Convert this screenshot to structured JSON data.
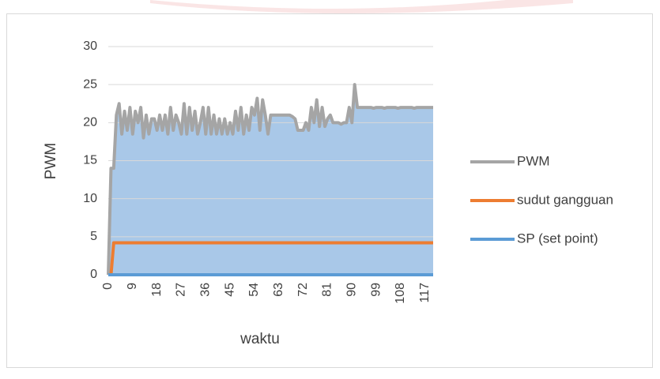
{
  "chart_data": {
    "type": "line",
    "x_label": "waktu",
    "y_label": "PWM",
    "categories": [
      "0",
      null,
      null,
      null,
      null,
      null,
      null,
      null,
      null,
      "9",
      null,
      null,
      null,
      null,
      null,
      null,
      null,
      null,
      "18",
      null,
      null,
      null,
      null,
      null,
      null,
      null,
      null,
      "27",
      null,
      null,
      null,
      null,
      null,
      null,
      null,
      null,
      "36",
      null,
      null,
      null,
      null,
      null,
      null,
      null,
      null,
      "45",
      null,
      null,
      null,
      null,
      null,
      null,
      null,
      null,
      "54",
      null,
      null,
      null,
      null,
      null,
      null,
      null,
      null,
      "63",
      null,
      null,
      null,
      null,
      null,
      null,
      null,
      null,
      "72",
      null,
      null,
      null,
      null,
      null,
      null,
      null,
      null,
      "81",
      null,
      null,
      null,
      null,
      null,
      null,
      null,
      null,
      "90",
      null,
      null,
      null,
      null,
      null,
      null,
      null,
      null,
      "99",
      null,
      null,
      null,
      null,
      null,
      null,
      null,
      null,
      "108",
      null,
      null,
      null,
      null,
      null,
      null,
      null,
      null,
      "117",
      null,
      null,
      null
    ],
    "series": [
      {
        "name": "PWM",
        "color": "#a5a5a5",
        "area_color": "#a9c8e8",
        "values": [
          0,
          14,
          14,
          21,
          22.5,
          18.5,
          21.5,
          19,
          22,
          18.5,
          21.5,
          20,
          22,
          18,
          21,
          18.5,
          20.5,
          20.5,
          19,
          21,
          19,
          21,
          18.5,
          22,
          19,
          21,
          20,
          18.5,
          22.5,
          18.5,
          22,
          19,
          21.5,
          18.5,
          20,
          22,
          18.5,
          22,
          18.5,
          21,
          18.5,
          20.5,
          18.5,
          20.5,
          18.5,
          20,
          18.5,
          21.5,
          19,
          22,
          18.5,
          21,
          19,
          22,
          21,
          23.2,
          19,
          23,
          21,
          18.5,
          21,
          21,
          21,
          21,
          21,
          21,
          21,
          21,
          20.8,
          20.5,
          19,
          19,
          19,
          20,
          19,
          22,
          20,
          23,
          19.5,
          22,
          19.5,
          20.5,
          21,
          20,
          20,
          20,
          19.8,
          20,
          20,
          22,
          20,
          25,
          22,
          22,
          22,
          22,
          22,
          22,
          21.9,
          22,
          22,
          22,
          21.9,
          22,
          22,
          22,
          22,
          21.9,
          22,
          22,
          22,
          22,
          22,
          21.9,
          22,
          22,
          22,
          22,
          22,
          22,
          22
        ]
      },
      {
        "name": "sudut gangguan",
        "color": "#ed7d31",
        "values": [
          0,
          0,
          4.2,
          4.2,
          4.2,
          4.2,
          4.2,
          4.2,
          4.2,
          4.2,
          4.2,
          4.2,
          4.2,
          4.2,
          4.2,
          4.2,
          4.2,
          4.2,
          4.2,
          4.2,
          4.2,
          4.2,
          4.2,
          4.2,
          4.2,
          4.2,
          4.2,
          4.2,
          4.2,
          4.2,
          4.2,
          4.2,
          4.2,
          4.2,
          4.2,
          4.2,
          4.2,
          4.2,
          4.2,
          4.2,
          4.2,
          4.2,
          4.2,
          4.2,
          4.2,
          4.2,
          4.2,
          4.2,
          4.2,
          4.2,
          4.2,
          4.2,
          4.2,
          4.2,
          4.2,
          4.2,
          4.2,
          4.2,
          4.2,
          4.2,
          4.2,
          4.2,
          4.2,
          4.2,
          4.2,
          4.2,
          4.2,
          4.2,
          4.2,
          4.2,
          4.2,
          4.2,
          4.2,
          4.2,
          4.2,
          4.2,
          4.2,
          4.2,
          4.2,
          4.2,
          4.2,
          4.2,
          4.2,
          4.2,
          4.2,
          4.2,
          4.2,
          4.2,
          4.2,
          4.2,
          4.2,
          4.2,
          4.2,
          4.2,
          4.2,
          4.2,
          4.2,
          4.2,
          4.2,
          4.2,
          4.2,
          4.2,
          4.2,
          4.2,
          4.2,
          4.2,
          4.2,
          4.2,
          4.2,
          4.2,
          4.2,
          4.2,
          4.2,
          4.2,
          4.2,
          4.2,
          4.2,
          4.2,
          4.2,
          4.2,
          4.2
        ]
      },
      {
        "name": "SP (set point)",
        "color": "#5b9bd5",
        "values": [
          0,
          0,
          0,
          0,
          0,
          0,
          0,
          0,
          0,
          0,
          0,
          0,
          0,
          0,
          0,
          0,
          0,
          0,
          0,
          0,
          0,
          0,
          0,
          0,
          0,
          0,
          0,
          0,
          0,
          0,
          0,
          0,
          0,
          0,
          0,
          0,
          0,
          0,
          0,
          0,
          0,
          0,
          0,
          0,
          0,
          0,
          0,
          0,
          0,
          0,
          0,
          0,
          0,
          0,
          0,
          0,
          0,
          0,
          0,
          0,
          0,
          0,
          0,
          0,
          0,
          0,
          0,
          0,
          0,
          0,
          0,
          0,
          0,
          0,
          0,
          0,
          0,
          0,
          0,
          0,
          0,
          0,
          0,
          0,
          0,
          0,
          0,
          0,
          0,
          0,
          0,
          0,
          0,
          0,
          0,
          0,
          0,
          0,
          0,
          0,
          0,
          0,
          0,
          0,
          0,
          0,
          0,
          0,
          0,
          0,
          0,
          0,
          0,
          0,
          0,
          0,
          0,
          0,
          0,
          0,
          0
        ]
      }
    ],
    "ylim": [
      0,
      30
    ],
    "yticks": [
      0,
      5,
      10,
      15,
      20,
      25,
      30
    ],
    "grid": true,
    "legend": "right"
  }
}
